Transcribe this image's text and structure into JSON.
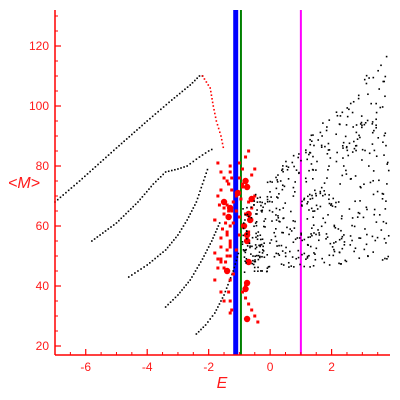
{
  "chart_data": {
    "type": "scatter",
    "xlabel": "E",
    "ylabel": "<M>",
    "xlim": [
      -7,
      3.9
    ],
    "ylim": [
      17,
      132
    ],
    "x_ticks": [
      -6,
      -4,
      -2,
      0,
      2
    ],
    "y_ticks": [
      20,
      40,
      60,
      80,
      100,
      120
    ],
    "axis_color": "#ff0000",
    "vertical_lines": [
      {
        "x": -1.12,
        "color": "#0000ff"
      },
      {
        "x": -0.95,
        "color": "#008000"
      },
      {
        "x": 1.0,
        "color": "#ff00ff"
      }
    ],
    "series": [
      {
        "kind": "curve",
        "color": "#000000",
        "x": [
          -7.0,
          -6.2,
          -5.0,
          -4.0,
          -3.2,
          -2.6,
          -2.3,
          -2.1
        ],
        "y": [
          68,
          75,
          86,
          95,
          102,
          107,
          110,
          110
        ]
      },
      {
        "kind": "curve",
        "color": "#000000",
        "x": [
          -5.8,
          -5.0,
          -4.3,
          -3.8,
          -3.4,
          -3.0,
          -2.7,
          -2.3,
          -2.0,
          -1.8
        ],
        "y": [
          55,
          61,
          68,
          74,
          78,
          79,
          80,
          83,
          85,
          86
        ]
      },
      {
        "kind": "curve",
        "color": "#000000",
        "x": [
          -4.6,
          -4.0,
          -3.4,
          -3.0,
          -2.7,
          -2.4,
          -2.2,
          -2.0
        ],
        "y": [
          43,
          47,
          52,
          57,
          62,
          68,
          74,
          80
        ]
      },
      {
        "kind": "curve",
        "color": "#000000",
        "x": [
          -3.4,
          -3.0,
          -2.6,
          -2.2,
          -1.9,
          -1.6
        ],
        "y": [
          33,
          37,
          42,
          49,
          55,
          62
        ]
      },
      {
        "kind": "curve",
        "color": "#000000",
        "x": [
          -2.4,
          -2.1,
          -1.8,
          -1.5,
          -1.2,
          -1.0
        ],
        "y": [
          24,
          27,
          31,
          37,
          45,
          52
        ]
      },
      {
        "kind": "curve",
        "color": "#ff0000",
        "x": [
          -2.2,
          -1.95,
          -1.85,
          -1.75,
          -1.6,
          -1.5
        ],
        "y": [
          110,
          106,
          100,
          95,
          90,
          85
        ]
      },
      {
        "kind": "points",
        "color": "#ff0000",
        "x": [
          -1.7,
          -1.3,
          -1.4,
          -1.6,
          -1.2,
          -1.5,
          -1.5,
          -1.8,
          -1.3,
          -1.4,
          -1.6,
          -0.7,
          -1.3,
          -1.1,
          -1.4,
          -1.6,
          -1.5,
          -1.2,
          -1.3,
          -0.8,
          -0.9,
          -0.8,
          -0.7,
          -0.6,
          -0.5,
          -0.4,
          -1.6,
          -1.5,
          -1.35,
          -1.25,
          -1.1,
          -1.7,
          -1.65,
          -1.4,
          -1.35,
          -1.25,
          -1.4,
          -1.45,
          -1.2,
          -1.55,
          -1.4,
          -1.3,
          -1.3,
          -1.8,
          -1.6,
          -1.45,
          -1.3,
          -1.2,
          -1.35,
          -0.9,
          -0.8,
          -0.6,
          -0.5,
          -1.0,
          -0.7,
          -0.6,
          -0.5,
          -0.8,
          -0.6,
          -0.7,
          -1.1,
          -1.0,
          -0.9,
          -1.0,
          -1.4,
          -1.8,
          -1.7,
          -1.6,
          -1.3,
          -1.5,
          -1.25,
          -1.3,
          -0.9,
          -0.8,
          -0.7,
          -1.6,
          -1.7,
          -1.8,
          -1.0,
          -0.9,
          -1.05,
          -0.95,
          -1.3,
          -1.25,
          -1.35
        ],
        "y": [
          81,
          78,
          75,
          72,
          68,
          66,
          64,
          62,
          60,
          58,
          56,
          55,
          54,
          52,
          50,
          48,
          46,
          44,
          42,
          40,
          38,
          36,
          34,
          32,
          30,
          28,
          78,
          76,
          74,
          72,
          70,
          70,
          67,
          67,
          65,
          65,
          63,
          61,
          61,
          59,
          57,
          55,
          53,
          62,
          53,
          48,
          50,
          44,
          38,
          73,
          75,
          77,
          79,
          76,
          68,
          66,
          70,
          64,
          62,
          58,
          65,
          63,
          60,
          57,
          52,
          42,
          46,
          38,
          35,
          35,
          32,
          31,
          79,
          83,
          85,
          49,
          49,
          51,
          81,
          74,
          71,
          69,
          80,
          76,
          74
        ]
      },
      {
        "kind": "points",
        "color": "#ff0000",
        "size": "large",
        "x": [
          -1.5,
          -1.3,
          -1.35,
          -0.7,
          -0.85,
          -0.7,
          -0.6,
          -0.75,
          -0.8,
          -0.75,
          -0.75,
          -0.65,
          -0.75,
          -1.05,
          -0.75,
          -0.8,
          -1.4
        ],
        "y": [
          68,
          66,
          63,
          48,
          60,
          64,
          69,
          73,
          75,
          41,
          57,
          62,
          55,
          71,
          29,
          39,
          45
        ]
      }
    ]
  }
}
